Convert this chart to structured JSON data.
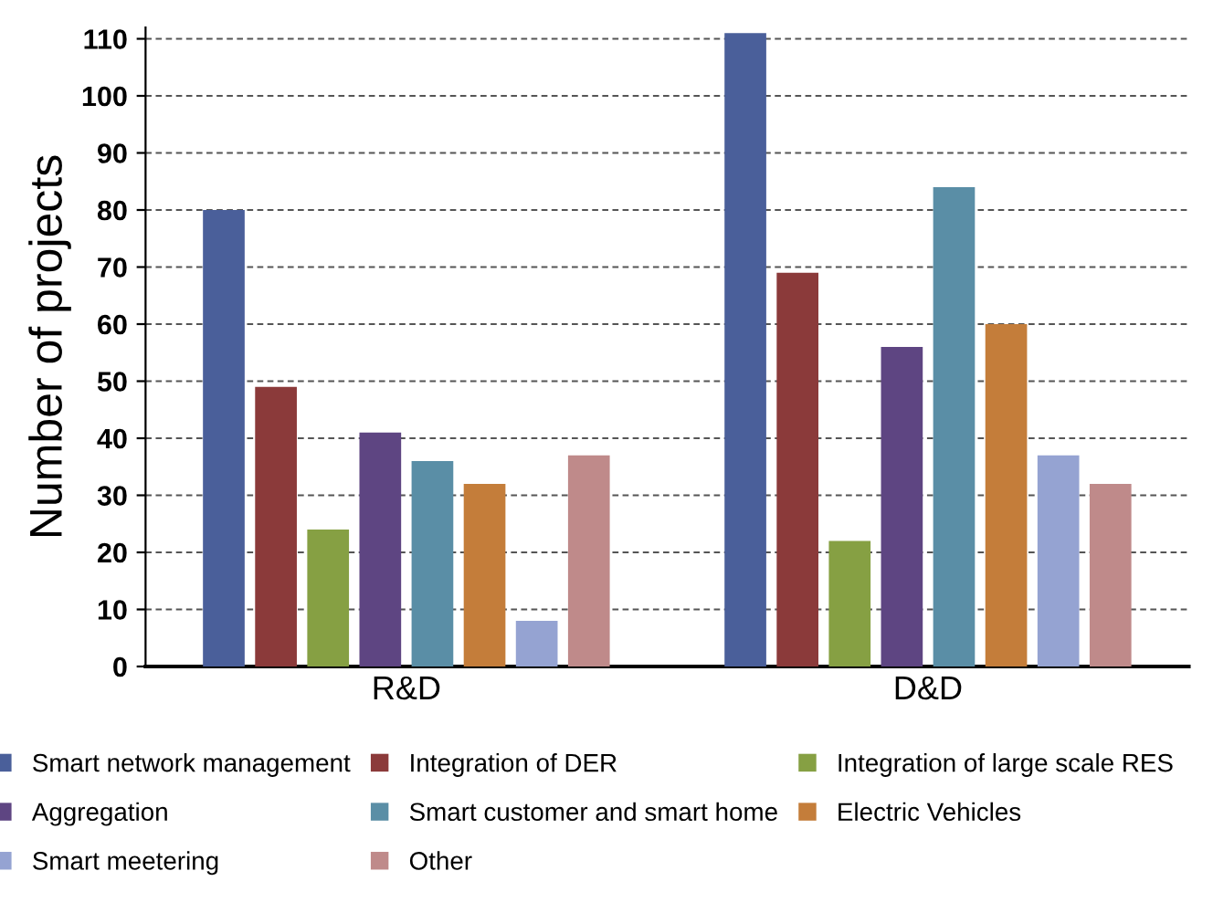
{
  "chart_data": {
    "type": "bar",
    "ylabel": "Number of projects",
    "categories": [
      "R&D",
      "D&D"
    ],
    "series": [
      {
        "name": "Smart network management",
        "color": "#4a5f9a",
        "values": [
          80,
          111
        ]
      },
      {
        "name": "Integration of DER",
        "color": "#8b3a3a",
        "values": [
          49,
          69
        ]
      },
      {
        "name": "Integration of large scale RES",
        "color": "#86a043",
        "values": [
          24,
          22
        ]
      },
      {
        "name": "Aggregation",
        "color": "#5e4582",
        "values": [
          41,
          56
        ]
      },
      {
        "name": "Smart customer and smart home",
        "color": "#5a8ea6",
        "values": [
          36,
          84
        ]
      },
      {
        "name": "Electric Vehicles",
        "color": "#c47d3a",
        "values": [
          32,
          60
        ]
      },
      {
        "name": "Smart meetering",
        "color": "#95a3d2",
        "values": [
          8,
          37
        ]
      },
      {
        "name": "Other",
        "color": "#bf8a8a",
        "values": [
          37,
          32
        ]
      }
    ],
    "ylim": [
      0,
      112
    ],
    "yticks": [
      0,
      10,
      20,
      30,
      40,
      50,
      60,
      70,
      80,
      90,
      100,
      110
    ],
    "grid": "y",
    "legend": "bottom"
  }
}
